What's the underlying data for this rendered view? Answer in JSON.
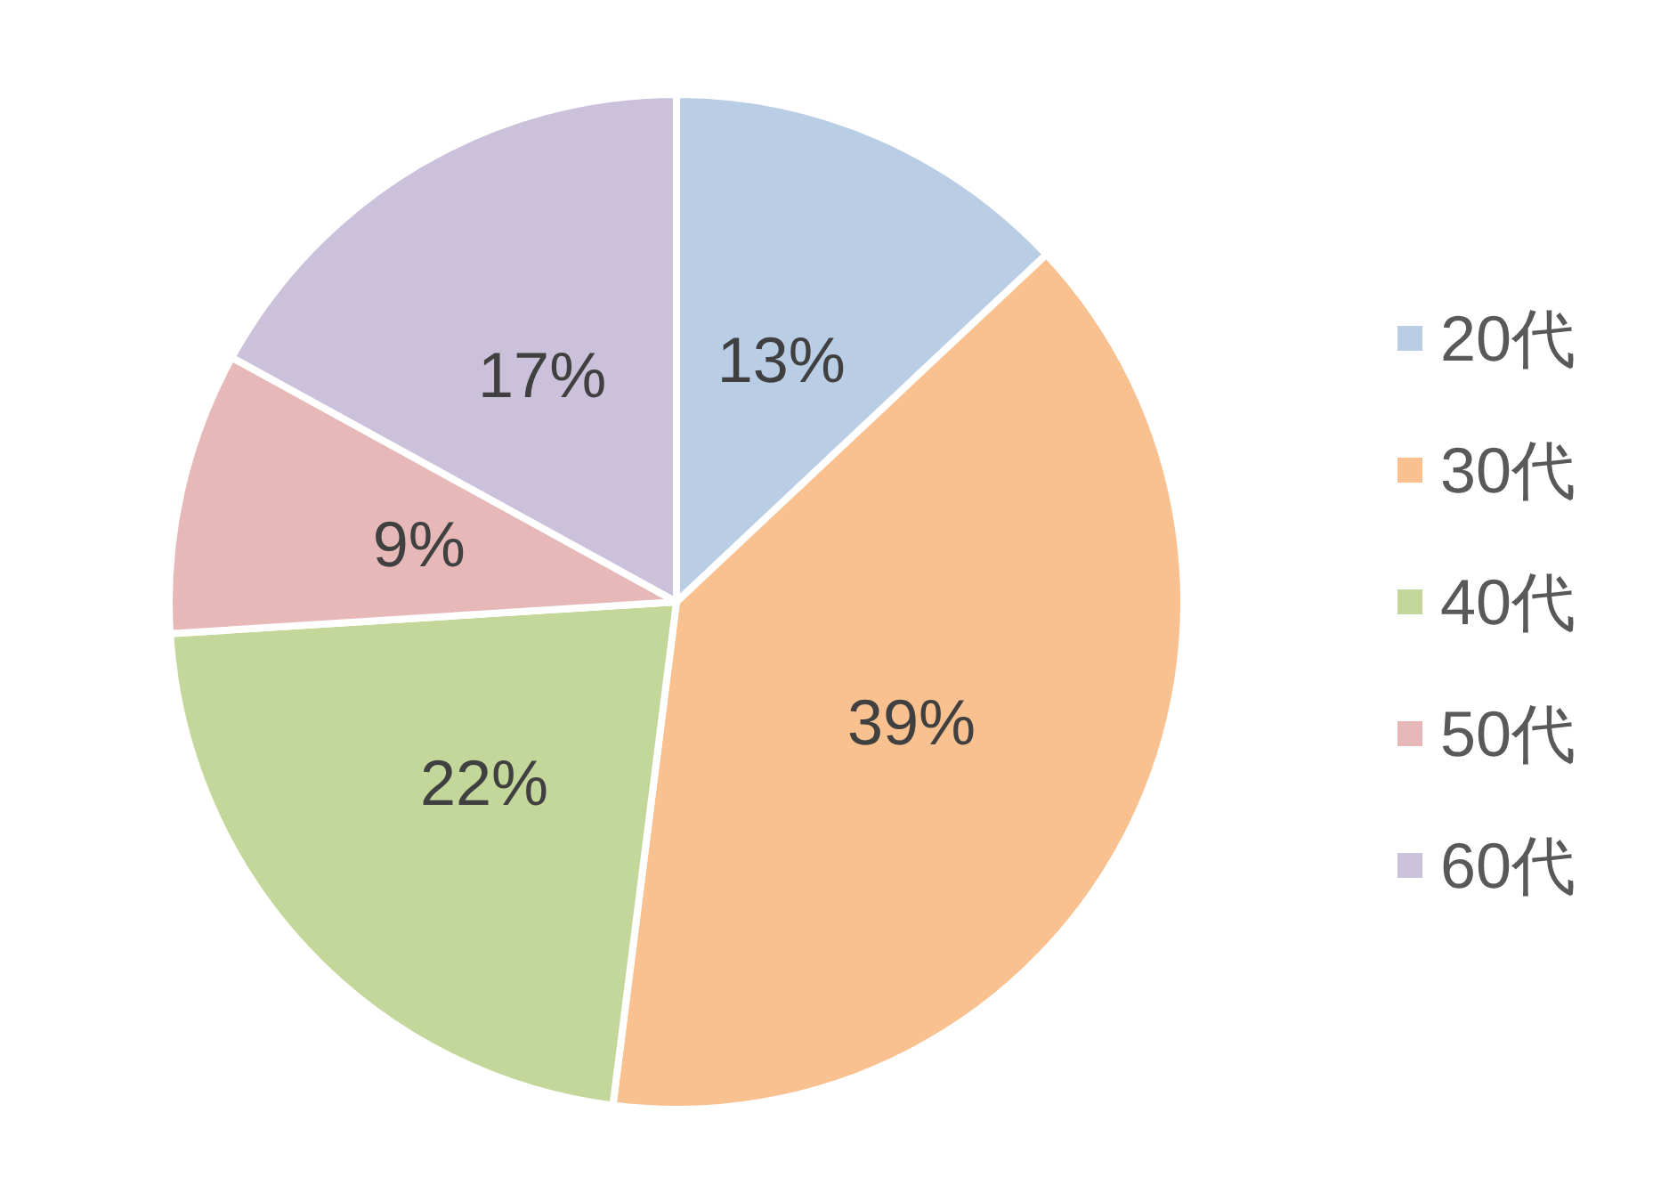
{
  "chart_data": {
    "type": "pie",
    "categories": [
      "20代",
      "30代",
      "40代",
      "50代",
      "60代"
    ],
    "values": [
      13,
      39,
      22,
      9,
      17
    ],
    "colors": [
      "#b9cde5",
      "#f9c090",
      "#c4d79b",
      "#e6b9b8",
      "#ccc1da"
    ],
    "value_labels": [
      "13%",
      "39%",
      "22%",
      "9%",
      "17%"
    ],
    "legend": "right"
  }
}
